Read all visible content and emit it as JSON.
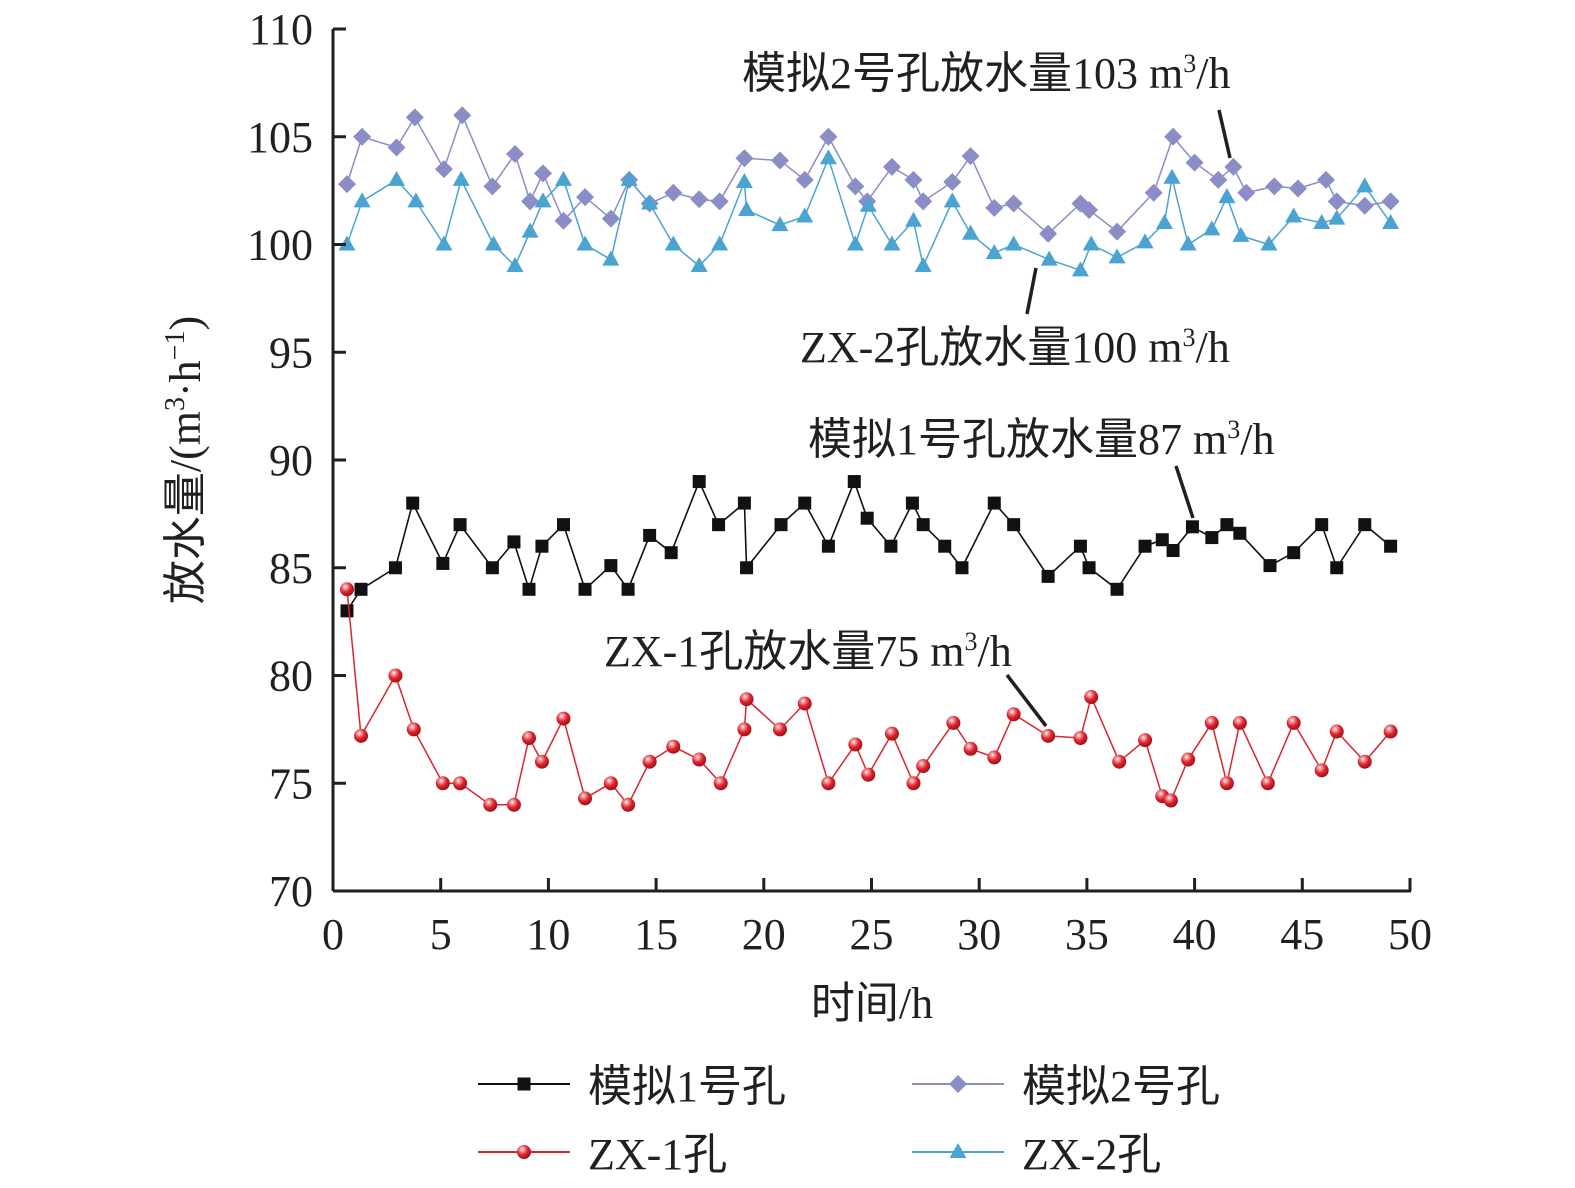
{
  "chart_data": {
    "type": "line",
    "title": "",
    "xlabel": "时间/h",
    "ylabel": "放水量/(m³·h⁻¹)",
    "ylabel_parts": {
      "prefix": "放水量/(m",
      "sup1": "3",
      "mid": "·h",
      "sup2": "−1",
      "suffix": ")"
    },
    "xlim": [
      0,
      50
    ],
    "ylim": [
      70,
      110
    ],
    "xticks": [
      0,
      5,
      10,
      15,
      20,
      25,
      30,
      35,
      40,
      45,
      50
    ],
    "xtick_labels": [
      "0",
      "5",
      "10",
      "15",
      "20",
      "25",
      "30",
      "35",
      "40",
      "45",
      "50"
    ],
    "yticks": [
      70,
      75,
      80,
      85,
      90,
      95,
      100,
      105,
      110
    ],
    "ytick_labels": [
      "70",
      "75",
      "80",
      "85",
      "90",
      "95",
      "100",
      "105",
      "110"
    ],
    "grid": false,
    "legend_position": "bottom",
    "series": [
      {
        "name": "模拟1号孔",
        "color": "#111111",
        "marker": "square",
        "x": [
          0.65,
          1.3,
          2.9,
          3.7,
          5.1,
          5.9,
          7.4,
          8.4,
          9.1,
          9.7,
          10.7,
          11.7,
          12.9,
          13.7,
          14.7,
          15.7,
          17.0,
          17.9,
          19.1,
          19.2,
          20.8,
          21.9,
          23.0,
          24.2,
          24.8,
          25.9,
          26.9,
          27.4,
          28.4,
          29.2,
          30.7,
          31.6,
          33.2,
          34.7,
          35.1,
          36.4,
          37.7,
          38.5,
          39.0,
          39.9,
          40.8,
          41.5,
          42.1,
          43.5,
          44.6,
          45.9,
          46.6,
          47.9,
          49.1
        ],
        "y": [
          83,
          84,
          85,
          88,
          85.2,
          87,
          85,
          86.2,
          84,
          86,
          87,
          84,
          85.1,
          84,
          86.5,
          85.7,
          89,
          87,
          88,
          85,
          87,
          88,
          86,
          89,
          87.3,
          86,
          88,
          87,
          86,
          85,
          88,
          87,
          84.6,
          86,
          85,
          84,
          86,
          86.3,
          85.8,
          86.9,
          86.4,
          87,
          86.6,
          85.1,
          85.7,
          87,
          85,
          87,
          86
        ]
      },
      {
        "name": "模拟2号孔",
        "color": "#8b8ec6",
        "marker": "diamond",
        "x": [
          0.65,
          1.35,
          2.95,
          3.8,
          5.15,
          6.0,
          7.4,
          8.45,
          9.15,
          9.75,
          10.7,
          11.7,
          12.9,
          13.75,
          14.7,
          15.8,
          17.0,
          17.95,
          19.1,
          20.75,
          21.9,
          23.0,
          24.25,
          24.8,
          25.95,
          26.95,
          27.4,
          28.75,
          29.6,
          30.7,
          31.6,
          33.2,
          34.7,
          35.1,
          36.4,
          38.1,
          39.0,
          40.0,
          41.1,
          41.8,
          42.4,
          43.7,
          44.8,
          46.1,
          46.6,
          47.9,
          49.1
        ],
        "y": [
          102.8,
          105,
          104.5,
          105.9,
          103.5,
          106,
          102.7,
          104.2,
          102,
          103.3,
          101.1,
          102.2,
          101.2,
          103,
          101.9,
          102.4,
          102.1,
          102,
          104,
          103.9,
          103,
          105,
          102.7,
          102,
          103.6,
          103,
          102,
          102.9,
          104.1,
          101.7,
          101.9,
          100.5,
          101.9,
          101.6,
          100.6,
          102.4,
          105,
          103.8,
          103,
          103.6,
          102.4,
          102.7,
          102.6,
          103,
          102,
          101.8,
          102
        ]
      },
      {
        "name": "ZX-1孔",
        "color": "#d7262e",
        "marker": "circle",
        "x": [
          0.65,
          1.3,
          2.9,
          3.75,
          5.1,
          5.9,
          7.3,
          8.4,
          9.1,
          9.7,
          10.7,
          11.7,
          12.9,
          13.7,
          14.7,
          15.8,
          17.0,
          18.0,
          19.1,
          19.2,
          20.75,
          21.9,
          23.0,
          24.25,
          24.85,
          25.95,
          26.95,
          27.4,
          28.8,
          29.6,
          30.7,
          31.6,
          33.2,
          34.7,
          35.2,
          36.5,
          37.7,
          38.5,
          38.9,
          39.7,
          40.8,
          41.5,
          42.1,
          43.4,
          44.6,
          45.9,
          46.6,
          47.9,
          49.1
        ],
        "y": [
          84,
          77.2,
          80,
          77.5,
          75,
          75,
          74,
          74,
          77.1,
          76,
          78,
          74.3,
          75,
          74,
          76,
          76.7,
          76.1,
          75,
          77.5,
          78.9,
          77.5,
          78.7,
          75,
          76.8,
          75.4,
          77.3,
          75,
          75.8,
          77.8,
          76.6,
          76.2,
          78.2,
          77.2,
          77.1,
          79,
          76,
          77,
          74.4,
          74.2,
          76.1,
          77.8,
          75,
          77.8,
          75,
          77.8,
          75.6,
          77.4,
          76,
          77.4
        ]
      },
      {
        "name": "ZX-2孔",
        "color": "#4aa3d1",
        "marker": "triangle",
        "x": [
          0.65,
          1.35,
          2.95,
          3.85,
          5.15,
          5.95,
          7.45,
          8.45,
          9.15,
          9.75,
          10.7,
          11.7,
          12.9,
          13.75,
          14.7,
          15.8,
          17.0,
          17.95,
          19.1,
          19.2,
          20.75,
          21.9,
          23.0,
          24.25,
          24.85,
          25.95,
          26.95,
          27.4,
          28.75,
          29.6,
          30.7,
          31.6,
          33.25,
          34.7,
          35.2,
          36.4,
          37.7,
          38.6,
          38.95,
          39.7,
          40.8,
          41.5,
          42.15,
          43.45,
          44.6,
          45.9,
          46.6,
          47.9,
          49.1
        ],
        "y": [
          100,
          102,
          103,
          102,
          100,
          103,
          100,
          99,
          100.6,
          102,
          103,
          100,
          99.3,
          103,
          101.9,
          100,
          99,
          100,
          102.9,
          101.6,
          100.9,
          101.3,
          104,
          100,
          101.8,
          100,
          101.1,
          99,
          102,
          100.5,
          99.6,
          100,
          99.3,
          98.8,
          100,
          99.4,
          100.1,
          101,
          103.1,
          100,
          100.7,
          102.2,
          100.4,
          100,
          101.3,
          101,
          101.2,
          102.7,
          101
        ]
      }
    ],
    "annotations": [
      {
        "text_main": "模拟2号孔放水量103 m",
        "sup": "3",
        "tail": "/h",
        "target": [
          41.8,
          103.6
        ]
      },
      {
        "text_main": "ZX-2孔放水量100 m",
        "sup": "3",
        "tail": "/h",
        "target": [
          32.0,
          99.5
        ]
      },
      {
        "text_main": "模拟1号孔放水量87 m",
        "sup": "3",
        "tail": "/h",
        "target": [
          39.8,
          86.9
        ]
      },
      {
        "text_main": "ZX-1孔放水量75 m",
        "sup": "3",
        "tail": "/h",
        "target": [
          33.2,
          77.2
        ]
      }
    ]
  }
}
